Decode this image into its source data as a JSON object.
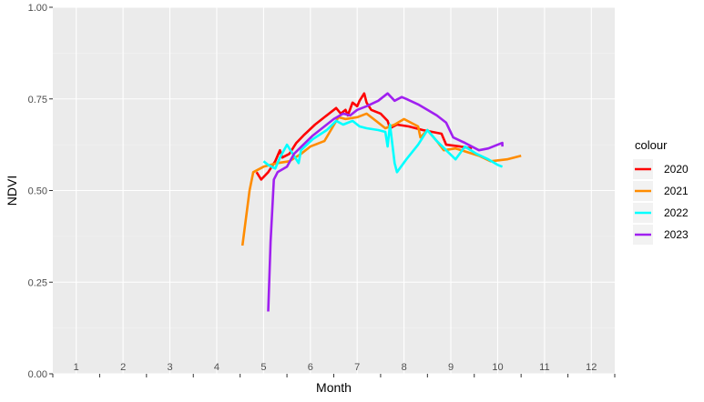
{
  "chart_data": {
    "type": "line",
    "xlabel": "Month",
    "ylabel": "NDVI",
    "xlim": [
      0.5,
      12.5
    ],
    "ylim": [
      0,
      1
    ],
    "x_ticks": [
      1,
      2,
      3,
      4,
      5,
      6,
      7,
      8,
      9,
      10,
      11,
      12
    ],
    "x_tick_labels": [
      "1",
      "2",
      "3",
      "4",
      "5",
      "6",
      "7",
      "8",
      "9",
      "10",
      "11",
      "12"
    ],
    "y_ticks": [
      0,
      0.25,
      0.5,
      0.75,
      1
    ],
    "y_tick_labels": [
      "0.00",
      "0.25",
      "0.50",
      "0.75",
      "1.00"
    ],
    "grid": true,
    "legend": {
      "title": "colour",
      "position": "right"
    },
    "series": [
      {
        "name": "2020",
        "color": "#ff0000",
        "points": [
          [
            4.85,
            0.55
          ],
          [
            4.95,
            0.53
          ],
          [
            5.1,
            0.55
          ],
          [
            5.25,
            0.58
          ],
          [
            5.35,
            0.61
          ],
          [
            5.4,
            0.59
          ],
          [
            5.55,
            0.6
          ],
          [
            5.7,
            0.63
          ],
          [
            5.85,
            0.65
          ],
          [
            6.1,
            0.68
          ],
          [
            6.3,
            0.7
          ],
          [
            6.55,
            0.725
          ],
          [
            6.65,
            0.71
          ],
          [
            6.75,
            0.72
          ],
          [
            6.8,
            0.705
          ],
          [
            6.9,
            0.74
          ],
          [
            7.0,
            0.73
          ],
          [
            7.05,
            0.745
          ],
          [
            7.15,
            0.765
          ],
          [
            7.2,
            0.74
          ],
          [
            7.3,
            0.72
          ],
          [
            7.5,
            0.71
          ],
          [
            7.65,
            0.69
          ],
          [
            7.7,
            0.67
          ],
          [
            7.85,
            0.68
          ],
          [
            8.1,
            0.675
          ],
          [
            8.4,
            0.665
          ],
          [
            8.6,
            0.66
          ],
          [
            8.8,
            0.655
          ],
          [
            8.9,
            0.625
          ],
          [
            9.2,
            0.62
          ],
          [
            9.45,
            0.615
          ]
        ]
      },
      {
        "name": "2021",
        "color": "#ff8c00",
        "points": [
          [
            4.55,
            0.35
          ],
          [
            4.7,
            0.5
          ],
          [
            4.78,
            0.55
          ],
          [
            5.0,
            0.565
          ],
          [
            5.3,
            0.575
          ],
          [
            5.55,
            0.58
          ],
          [
            5.8,
            0.6
          ],
          [
            6.0,
            0.62
          ],
          [
            6.3,
            0.635
          ],
          [
            6.6,
            0.7
          ],
          [
            6.75,
            0.695
          ],
          [
            7.0,
            0.7
          ],
          [
            7.2,
            0.71
          ],
          [
            7.4,
            0.69
          ],
          [
            7.6,
            0.67
          ],
          [
            7.8,
            0.68
          ],
          [
            8.0,
            0.695
          ],
          [
            8.3,
            0.675
          ],
          [
            8.35,
            0.645
          ],
          [
            8.5,
            0.665
          ],
          [
            8.7,
            0.635
          ],
          [
            8.85,
            0.61
          ],
          [
            9.1,
            0.615
          ],
          [
            9.35,
            0.605
          ],
          [
            9.6,
            0.595
          ],
          [
            9.85,
            0.58
          ],
          [
            10.2,
            0.585
          ],
          [
            10.5,
            0.595
          ]
        ]
      },
      {
        "name": "2022",
        "color": "#00ffff",
        "points": [
          [
            5.0,
            0.58
          ],
          [
            5.1,
            0.57
          ],
          [
            5.25,
            0.56
          ],
          [
            5.35,
            0.59
          ],
          [
            5.5,
            0.625
          ],
          [
            5.6,
            0.605
          ],
          [
            5.75,
            0.575
          ],
          [
            5.8,
            0.61
          ],
          [
            6.05,
            0.64
          ],
          [
            6.35,
            0.665
          ],
          [
            6.55,
            0.69
          ],
          [
            6.7,
            0.68
          ],
          [
            6.9,
            0.69
          ],
          [
            7.05,
            0.675
          ],
          [
            7.2,
            0.67
          ],
          [
            7.45,
            0.665
          ],
          [
            7.6,
            0.66
          ],
          [
            7.65,
            0.62
          ],
          [
            7.7,
            0.68
          ],
          [
            7.8,
            0.575
          ],
          [
            7.85,
            0.55
          ],
          [
            8.05,
            0.585
          ],
          [
            8.3,
            0.625
          ],
          [
            8.5,
            0.665
          ],
          [
            8.7,
            0.635
          ],
          [
            8.9,
            0.61
          ],
          [
            9.1,
            0.585
          ],
          [
            9.3,
            0.62
          ],
          [
            9.55,
            0.6
          ],
          [
            9.8,
            0.585
          ],
          [
            10.0,
            0.57
          ],
          [
            10.1,
            0.565
          ]
        ]
      },
      {
        "name": "2023",
        "color": "#a020f0",
        "points": [
          [
            5.1,
            0.17
          ],
          [
            5.15,
            0.36
          ],
          [
            5.22,
            0.53
          ],
          [
            5.3,
            0.55
          ],
          [
            5.5,
            0.565
          ],
          [
            5.65,
            0.6
          ],
          [
            5.85,
            0.625
          ],
          [
            6.05,
            0.65
          ],
          [
            6.3,
            0.675
          ],
          [
            6.5,
            0.695
          ],
          [
            6.7,
            0.71
          ],
          [
            6.85,
            0.705
          ],
          [
            7.0,
            0.72
          ],
          [
            7.2,
            0.73
          ],
          [
            7.45,
            0.745
          ],
          [
            7.65,
            0.765
          ],
          [
            7.8,
            0.745
          ],
          [
            7.95,
            0.755
          ],
          [
            8.05,
            0.75
          ],
          [
            8.3,
            0.735
          ],
          [
            8.5,
            0.72
          ],
          [
            8.7,
            0.705
          ],
          [
            8.9,
            0.685
          ],
          [
            9.05,
            0.645
          ],
          [
            9.3,
            0.63
          ],
          [
            9.6,
            0.61
          ],
          [
            9.8,
            0.615
          ],
          [
            10.0,
            0.625
          ],
          [
            10.1,
            0.63
          ],
          [
            10.1,
            0.62
          ]
        ]
      }
    ]
  }
}
